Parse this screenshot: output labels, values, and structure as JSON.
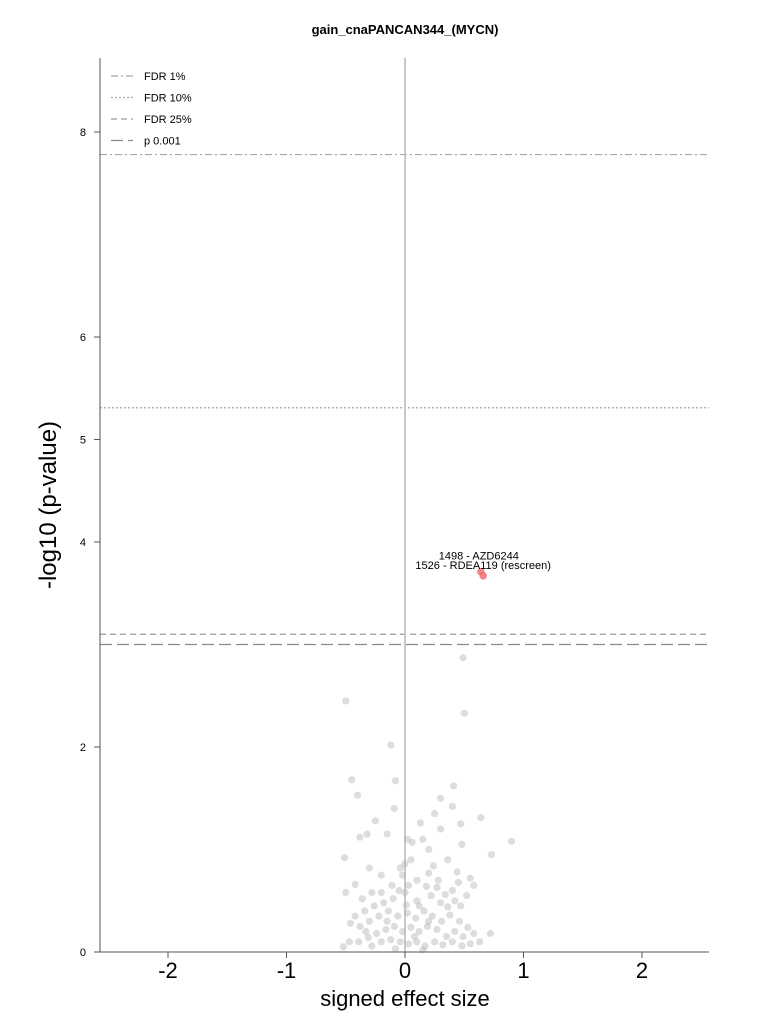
{
  "chart_data": {
    "type": "scatter",
    "title": "gain_cnaPANCAN344_(MYCN)",
    "xlabel": "signed effect size",
    "ylabel": "-log10 (p-value)",
    "xlim": [
      -2.55,
      2.6
    ],
    "ylim": [
      0,
      8.7
    ],
    "x_ticks": [
      "-2",
      "-1",
      "0",
      "1",
      "2"
    ],
    "x_tick_values": [
      -2,
      -1,
      0,
      1,
      2
    ],
    "y_ticks": [
      "0",
      "2",
      "4",
      "5",
      "6",
      "8"
    ],
    "y_tick_values": [
      0,
      2,
      4,
      5,
      6,
      8
    ],
    "grid": false,
    "legend_placement": "top-left",
    "legend": [
      {
        "label": "FDR 1%",
        "style": "dashdot"
      },
      {
        "label": "FDR 10%",
        "style": "dotted"
      },
      {
        "label": "FDR 25%",
        "style": "dashed"
      },
      {
        "label": "p 0.001",
        "style": "longdash"
      }
    ],
    "threshold_lines": [
      {
        "name": "FDR 1%",
        "y": 7.78,
        "style": "dashdot"
      },
      {
        "name": "FDR 10%",
        "y": 5.31,
        "style": "dotted"
      },
      {
        "name": "FDR 25%",
        "y": 3.1,
        "style": "dashed"
      },
      {
        "name": "p 0.001",
        "y": 3.0,
        "style": "longdash"
      }
    ],
    "highlighted_points": [
      {
        "label": "1498 - AZD6244",
        "x": 0.64,
        "y": 3.71
      },
      {
        "label": "1526 - RDEA119 (rescreen)",
        "x": 0.66,
        "y": 3.67
      }
    ],
    "points": [
      [
        -0.5,
        2.45
      ],
      [
        0.49,
        2.87
      ],
      [
        0.5,
        2.33
      ],
      [
        -0.12,
        2.02
      ],
      [
        -0.45,
        1.68
      ],
      [
        -0.4,
        1.53
      ],
      [
        -0.08,
        1.67
      ],
      [
        0.41,
        1.62
      ],
      [
        0.4,
        1.42
      ],
      [
        0.3,
        1.5
      ],
      [
        0.25,
        1.35
      ],
      [
        0.47,
        1.25
      ],
      [
        0.64,
        1.31
      ],
      [
        0.9,
        1.08
      ],
      [
        0.73,
        0.95
      ],
      [
        -0.25,
        1.28
      ],
      [
        -0.38,
        1.12
      ],
      [
        -0.32,
        1.15
      ],
      [
        -0.09,
        1.4
      ],
      [
        0.02,
        1.1
      ],
      [
        0.15,
        1.1
      ],
      [
        0.3,
        1.2
      ],
      [
        0.48,
        1.05
      ],
      [
        -0.51,
        0.92
      ],
      [
        -0.15,
        1.15
      ],
      [
        0.13,
        1.26
      ],
      [
        0.2,
        1.0
      ],
      [
        0.06,
        1.07
      ],
      [
        0.0,
        0.86
      ],
      [
        -0.04,
        0.82
      ],
      [
        0.24,
        0.84
      ],
      [
        0.36,
        0.9
      ],
      [
        0.44,
        0.78
      ],
      [
        0.55,
        0.72
      ],
      [
        0.45,
        0.68
      ],
      [
        0.58,
        0.65
      ],
      [
        0.2,
        0.77
      ],
      [
        0.1,
        0.7
      ],
      [
        -0.2,
        0.75
      ],
      [
        -0.3,
        0.82
      ],
      [
        -0.42,
        0.66
      ],
      [
        -0.5,
        0.58
      ],
      [
        -0.28,
        0.58
      ],
      [
        -0.36,
        0.52
      ],
      [
        0.03,
        0.65
      ],
      [
        -0.05,
        0.6
      ],
      [
        0.18,
        0.64
      ],
      [
        0.34,
        0.56
      ],
      [
        0.28,
        0.7
      ],
      [
        0.4,
        0.6
      ],
      [
        0.52,
        0.55
      ],
      [
        0.47,
        0.45
      ],
      [
        0.42,
        0.5
      ],
      [
        0.3,
        0.48
      ],
      [
        0.22,
        0.55
      ],
      [
        0.1,
        0.5
      ],
      [
        0.01,
        0.46
      ],
      [
        -0.1,
        0.52
      ],
      [
        -0.18,
        0.48
      ],
      [
        -0.26,
        0.45
      ],
      [
        -0.34,
        0.4
      ],
      [
        -0.42,
        0.35
      ],
      [
        -0.46,
        0.28
      ],
      [
        -0.38,
        0.25
      ],
      [
        -0.3,
        0.3
      ],
      [
        -0.22,
        0.35
      ],
      [
        -0.14,
        0.4
      ],
      [
        -0.06,
        0.35
      ],
      [
        0.02,
        0.38
      ],
      [
        0.09,
        0.33
      ],
      [
        0.16,
        0.4
      ],
      [
        0.23,
        0.35
      ],
      [
        0.31,
        0.3
      ],
      [
        0.38,
        0.36
      ],
      [
        0.46,
        0.3
      ],
      [
        0.53,
        0.24
      ],
      [
        0.58,
        0.18
      ],
      [
        0.49,
        0.15
      ],
      [
        0.42,
        0.2
      ],
      [
        0.35,
        0.15
      ],
      [
        0.27,
        0.22
      ],
      [
        0.19,
        0.25
      ],
      [
        0.12,
        0.2
      ],
      [
        0.05,
        0.24
      ],
      [
        -0.02,
        0.2
      ],
      [
        -0.09,
        0.25
      ],
      [
        -0.16,
        0.22
      ],
      [
        -0.24,
        0.18
      ],
      [
        -0.31,
        0.14
      ],
      [
        -0.39,
        0.1
      ],
      [
        -0.47,
        0.1
      ],
      [
        -0.52,
        0.05
      ],
      [
        -0.28,
        0.06
      ],
      [
        -0.2,
        0.1
      ],
      [
        -0.12,
        0.12
      ],
      [
        -0.04,
        0.1
      ],
      [
        0.03,
        0.08
      ],
      [
        0.1,
        0.1
      ],
      [
        0.17,
        0.06
      ],
      [
        0.25,
        0.1
      ],
      [
        0.32,
        0.07
      ],
      [
        0.4,
        0.1
      ],
      [
        0.48,
        0.06
      ],
      [
        0.55,
        0.08
      ],
      [
        0.63,
        0.1
      ],
      [
        0.72,
        0.18
      ],
      [
        0.15,
        0.02
      ],
      [
        -0.08,
        0.03
      ],
      [
        0.08,
        0.15
      ],
      [
        -0.15,
        0.3
      ],
      [
        0.0,
        0.58
      ],
      [
        -0.02,
        0.75
      ],
      [
        0.05,
        0.9
      ],
      [
        -0.11,
        0.65
      ],
      [
        0.12,
        0.45
      ],
      [
        0.2,
        0.3
      ],
      [
        -0.2,
        0.58
      ],
      [
        -0.33,
        0.2
      ],
      [
        0.36,
        0.44
      ],
      [
        0.27,
        0.63
      ]
    ]
  }
}
